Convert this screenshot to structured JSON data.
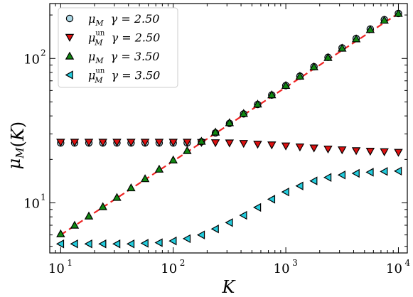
{
  "chart_data": {
    "type": "scatter",
    "x_scale": "log",
    "y_scale": "log",
    "xlim": [
      8,
      12000
    ],
    "ylim": [
      4.5,
      240
    ],
    "xlabel": {
      "base": "K"
    },
    "ylabel": {
      "base": "μ",
      "sub": "M",
      "arg": "(K)"
    },
    "x_ticks": [
      {
        "value": 10,
        "base": "10",
        "exp": "1"
      },
      {
        "value": 100,
        "base": "10",
        "exp": "2"
      },
      {
        "value": 1000,
        "base": "10",
        "exp": "3"
      },
      {
        "value": 10000,
        "base": "10",
        "exp": "4"
      }
    ],
    "y_ticks": [
      {
        "value": 10,
        "base": "10",
        "exp": "1"
      },
      {
        "value": 100,
        "base": "10",
        "exp": "2"
      }
    ],
    "grid": false,
    "legend_position": "top-left",
    "x": [
      10,
      13.3,
      17.8,
      23.7,
      31.6,
      42.2,
      56.2,
      75,
      100,
      133,
      178,
      237,
      316,
      422,
      562,
      750,
      1000,
      1334,
      1778,
      2371,
      3162,
      4217,
      5623,
      7499,
      10000
    ],
    "series": [
      {
        "name": "μ_M  γ = 2.50",
        "label": {
          "sym": "μ",
          "sub": "M",
          "sup": "",
          "gamma": "γ = 2.50"
        },
        "marker": "circle",
        "color": "#add8e6",
        "values": [
          26,
          26,
          26,
          26,
          26,
          26,
          26,
          26,
          26,
          26,
          26.5,
          30.5,
          35.5,
          41.3,
          48,
          55.8,
          64.9,
          75.4,
          87.6,
          101.8,
          118.3,
          137.5,
          159.8,
          185.7,
          205
        ]
      },
      {
        "name": "μ_M^un  γ = 2.50",
        "label": {
          "sym": "μ",
          "sub": "M",
          "sup": "un",
          "gamma": "γ = 2.50"
        },
        "marker": "triangle-down",
        "color": "#dd1111",
        "values": [
          26.3,
          26.3,
          26.3,
          26.3,
          26.3,
          26.3,
          26.3,
          26.3,
          26.3,
          26.3,
          26.2,
          26.1,
          26,
          25.8,
          25.5,
          25.2,
          24.8,
          24.4,
          24,
          23.6,
          23.3,
          23,
          22.8,
          22.6,
          22.4
        ]
      },
      {
        "name": "μ_M  γ = 3.50",
        "label": {
          "sym": "μ",
          "sub": "M",
          "sup": "",
          "gamma": "γ = 3.50"
        },
        "marker": "triangle-up",
        "color": "#118811",
        "values": [
          6.1,
          7.0,
          8.1,
          9.4,
          10.9,
          12.7,
          14.7,
          17.1,
          19.8,
          23,
          26.7,
          30.9,
          35.9,
          41.6,
          48.3,
          56,
          65,
          75.4,
          87.5,
          101.5,
          117.8,
          136.7,
          158.6,
          184,
          205
        ]
      },
      {
        "name": "μ_M^un  γ = 3.50",
        "label": {
          "sym": "μ",
          "sub": "M",
          "sup": "un",
          "gamma": "γ = 3.50"
        },
        "marker": "triangle-left",
        "color": "#22ccdd",
        "values": [
          5.2,
          5.2,
          5.2,
          5.2,
          5.2,
          5.2,
          5.25,
          5.3,
          5.45,
          5.65,
          6.0,
          6.6,
          7.3,
          8.2,
          9.3,
          10.6,
          11.9,
          13.1,
          14.2,
          15.0,
          15.6,
          16.0,
          16.3,
          16.5,
          16.6
        ]
      }
    ],
    "fit_line": {
      "color": "#ee2222",
      "style": "dashed",
      "x": [
        10,
        10000
      ],
      "y": [
        6.0,
        205
      ]
    }
  }
}
